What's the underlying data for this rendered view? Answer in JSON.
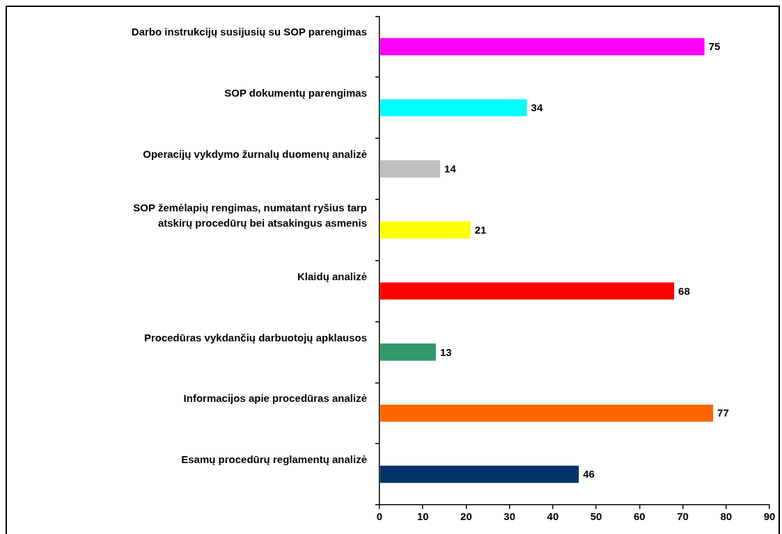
{
  "chart_data": {
    "type": "bar",
    "orientation": "horizontal",
    "categories": [
      "Darbo instrukcijų susijusių su SOP parengimas",
      "SOP dokumentų parengimas",
      "Operacijų vykdymo žurnalų duomenų analizė",
      "SOP žemėlapių rengimas, numatant ryšius tarp\natskirų procedūrų bei atsakingus asmenis",
      "Klaidų analizė",
      "Procedūras vykdančių darbuotojų apklausos",
      "Informacijos apie procedūras analizė",
      "Esamų procedūrų reglamentų analizė"
    ],
    "values": [
      75,
      34,
      14,
      21,
      68,
      13,
      77,
      46
    ],
    "colors": [
      "#ff00ff",
      "#00ffff",
      "#c0c0c0",
      "#ffff00",
      "#ff0000",
      "#339966",
      "#ff6600",
      "#003366"
    ],
    "xlim": [
      0,
      90
    ],
    "xticks": [
      0,
      10,
      20,
      30,
      40,
      50,
      60,
      70,
      80,
      90
    ],
    "grid": false,
    "legend": false,
    "data_labels": true
  }
}
